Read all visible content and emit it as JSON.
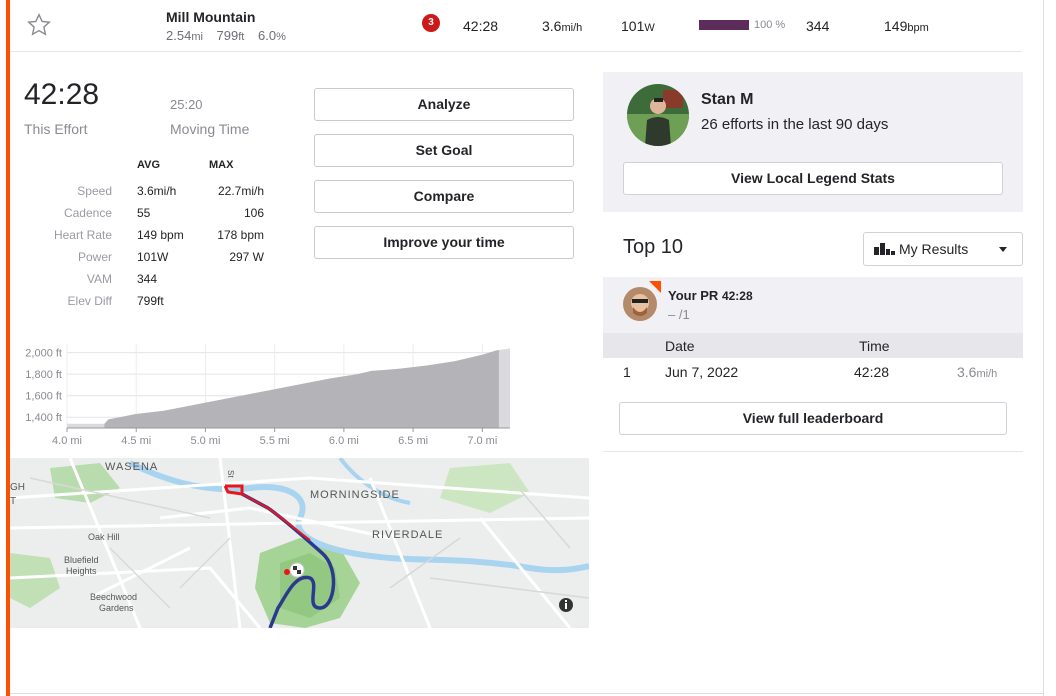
{
  "segment": {
    "name": "Mill Mountain",
    "distance": "2.54",
    "distance_unit": "mi",
    "elevation": "799",
    "elevation_unit": "ft",
    "grade": "6.0",
    "grade_unit": "%",
    "rank_badge": "3",
    "time": "42:28",
    "speed": "3.6",
    "speed_unit": "mi/h",
    "power": "101",
    "power_unit": "W",
    "power_percent_value": 100,
    "power_percent": "100 %",
    "vam": "344",
    "heart_rate": "149",
    "heart_rate_unit": "bpm"
  },
  "effort": {
    "elapsed_time": "42:28",
    "elapsed_label": "This Effort",
    "moving_time": "25:20",
    "moving_label": "Moving Time",
    "avg_header": "AVG",
    "max_header": "MAX",
    "rows": [
      {
        "label": "Speed",
        "avg": "3.6mi/h",
        "max": "22.7mi/h"
      },
      {
        "label": "Cadence",
        "avg": "55",
        "max": "106"
      },
      {
        "label": "Heart Rate",
        "avg": "149 bpm",
        "max": "178 bpm"
      },
      {
        "label": "Power",
        "avg": "101W",
        "max": "297 W"
      },
      {
        "label": "VAM",
        "avg": "344",
        "max": ""
      },
      {
        "label": "Elev Diff",
        "avg": "799ft",
        "max": ""
      }
    ]
  },
  "actions": {
    "analyze": "Analyze",
    "set_goal": "Set Goal",
    "compare": "Compare",
    "improve": "Improve your time"
  },
  "chart_data": {
    "type": "area",
    "y_ticks": [
      "2,000 ft",
      "1,800 ft",
      "1,600 ft",
      "1,400 ft"
    ],
    "x_ticks": [
      "4.0 mi",
      "4.5 mi",
      "5.0 mi",
      "5.5 mi",
      "6.0 mi",
      "6.5 mi",
      "7.0 mi"
    ],
    "xlim": [
      4.0,
      7.2
    ],
    "ylim": [
      1300,
      2080
    ],
    "x": [
      4.0,
      4.1,
      4.27,
      4.3,
      4.5,
      4.7,
      4.9,
      5.1,
      5.3,
      5.5,
      5.7,
      5.9,
      6.1,
      6.2,
      6.4,
      6.6,
      6.8,
      7.0,
      7.1,
      7.2
    ],
    "y": [
      1340,
      1340,
      1340,
      1380,
      1430,
      1460,
      1510,
      1560,
      1610,
      1660,
      1710,
      1760,
      1800,
      1830,
      1850,
      1880,
      1920,
      1980,
      2020,
      2040
    ],
    "highlight_range": [
      4.27,
      7.12
    ],
    "grid": true
  },
  "map": {
    "labels": {
      "wasena": "WASENA",
      "morningside": "MORNINGSIDE",
      "riverdale": "RIVERDALE",
      "oak_hill": "Oak Hill",
      "bluefield": "Bluefield",
      "heights": "Heights",
      "beechwood": "Beechwood",
      "gardens": "Gardens",
      "edge_gh": "GH",
      "edge_t": "T",
      "street": "St"
    },
    "route_color": "#2b3a8f",
    "highlight_color": "#e8161b"
  },
  "local_legend": {
    "name": "Stan M",
    "efforts": "26 efforts in the last 90 days",
    "button": "View Local Legend Stats"
  },
  "top10": {
    "title": "Top 10",
    "filter": "My Results",
    "pr_label": "Your PR",
    "pr_time": "42:28",
    "pr_rank": "– /1",
    "headers": {
      "date": "Date",
      "time": "Time"
    },
    "rows": [
      {
        "rank": "1",
        "date": "Jun 7, 2022",
        "time": "42:28",
        "speed": "3.6",
        "speed_unit": "mi/h"
      }
    ],
    "button": "View full leaderboard"
  },
  "colors": {
    "accent": "#fc5200",
    "rank_badge": "#cc1a1a",
    "power_bar": "#5c2d5a"
  }
}
